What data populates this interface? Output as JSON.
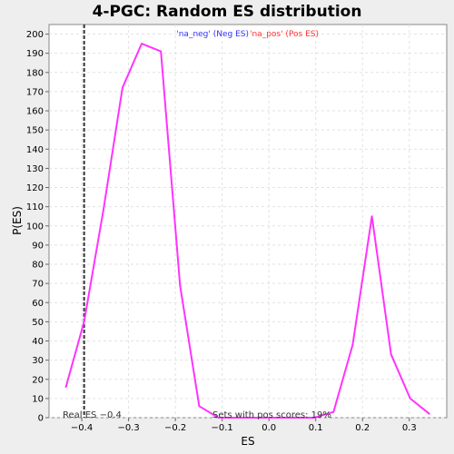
{
  "chart_data": {
    "type": "line",
    "title": "4-PGC: Random ES distribution",
    "xlabel": "ES",
    "ylabel": "P(ES)",
    "xlim": [
      -0.47,
      0.38
    ],
    "ylim": [
      0,
      205
    ],
    "x_ticks": [
      -0.4,
      -0.3,
      -0.2,
      -0.1,
      0.0,
      0.1,
      0.2,
      0.3
    ],
    "x_tick_labels": [
      "−0.4",
      "−0.3",
      "−0.2",
      "−0.1",
      "0.0",
      "0.1",
      "0.2",
      "0.3"
    ],
    "y_ticks": [
      0,
      10,
      20,
      30,
      40,
      50,
      60,
      70,
      80,
      90,
      100,
      110,
      120,
      130,
      140,
      150,
      160,
      170,
      180,
      190,
      200
    ],
    "grid": true,
    "legend": [
      {
        "label": "'na_neg' (Neg ES)",
        "color": "#3333ff"
      },
      {
        "label": "'na_pos' (Pos ES)",
        "color": "#ff3333"
      }
    ],
    "series": [
      {
        "color": "#ff33ff",
        "x": [
          -0.434,
          -0.395,
          -0.354,
          -0.313,
          -0.272,
          -0.231,
          -0.19,
          -0.149,
          -0.108,
          -0.067,
          -0.026,
          0.015,
          0.056,
          0.097,
          0.138,
          0.179,
          0.22,
          0.261,
          0.302,
          0.343
        ],
        "y": [
          16,
          50,
          108,
          172,
          195,
          191,
          69,
          6,
          0,
          0,
          0,
          0,
          0,
          0,
          3,
          38,
          105,
          33,
          10,
          2
        ]
      }
    ],
    "real_es": -0.395,
    "annotations": {
      "real_es_label": "Real ES −0.4",
      "pos_scores_label": "Sets with pos scores: 19%"
    }
  }
}
